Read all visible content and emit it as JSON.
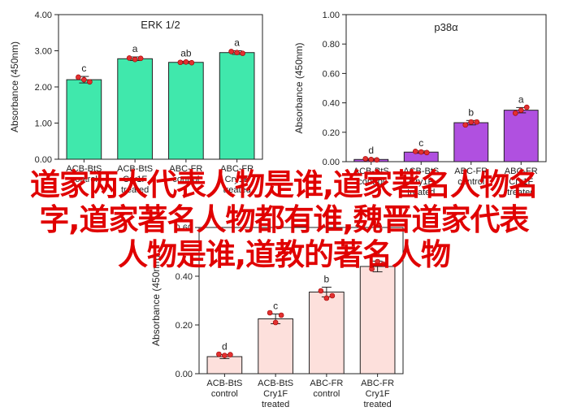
{
  "headline": {
    "line1": "道家两大代表人物是谁,道家著名人物名",
    "line2": "字,道家著名人物都有谁,魏晋道家代表",
    "line3": "人物是谁,道教的著名人物",
    "color": "#e00000"
  },
  "chart_data": [
    {
      "type": "bar",
      "title": "ERK 1/2",
      "ylabel": "Absorbance (450nm)",
      "ylim": [
        0,
        4.0
      ],
      "yticks": [
        "0.00",
        "1.00",
        "2.00",
        "3.00",
        "4.00"
      ],
      "categories": [
        [
          "ACB-BtS",
          "control"
        ],
        [
          "ACB-BtS",
          "Cry1F",
          "treated"
        ],
        [
          "ABC-FR",
          "control"
        ],
        [
          "ABC-FR",
          "Cry1F",
          "treated"
        ]
      ],
      "values": [
        2.2,
        2.78,
        2.68,
        2.95
      ],
      "errors": [
        0.09,
        0.05,
        0.03,
        0.05
      ],
      "letters": [
        "c",
        "a",
        "ab",
        "a"
      ],
      "points": [
        [
          2.27,
          2.2,
          2.14
        ],
        [
          2.8,
          2.76,
          2.79
        ],
        [
          2.68,
          2.69,
          2.67
        ],
        [
          2.98,
          2.95,
          2.93
        ]
      ],
      "bar_color": "#40e8ac"
    },
    {
      "type": "bar",
      "title": "p38α",
      "ylabel": "Absorbance (450nm)",
      "ylim": [
        0,
        1.0
      ],
      "yticks": [
        "0.00",
        "0.20",
        "0.40",
        "0.60",
        "0.80",
        "1.00"
      ],
      "categories": [
        [
          "ACB-BtS",
          "control"
        ],
        [
          "ACB-BtS",
          "Cry1F",
          "treated"
        ],
        [
          "ABC-FR",
          "control"
        ],
        [
          "ABC-FR",
          "Cry1F",
          "treated"
        ]
      ],
      "values": [
        0.015,
        0.065,
        0.265,
        0.35
      ],
      "errors": [
        0.006,
        0.008,
        0.015,
        0.018
      ],
      "letters": [
        "d",
        "c",
        "b",
        "a"
      ],
      "points": [
        [
          0.02,
          0.015,
          0.012
        ],
        [
          0.07,
          0.066,
          0.062
        ],
        [
          0.25,
          0.27,
          0.27
        ],
        [
          0.33,
          0.35,
          0.37
        ]
      ],
      "bar_color": "#b050e0"
    },
    {
      "type": "bar",
      "title": "",
      "ylabel": "Absorbance (450nm)",
      "ylim": [
        0,
        0.6
      ],
      "yticks": [
        "0.00",
        "0.20",
        "0.40",
        "0.60"
      ],
      "categories": [
        [
          "ACB-BtS",
          "control"
        ],
        [
          "ACB-BtS",
          "Cry1F",
          "treated"
        ],
        [
          "ABC-FR",
          "control"
        ],
        [
          "ABC-FR",
          "Cry1F",
          "treated"
        ]
      ],
      "values": [
        0.07,
        0.225,
        0.335,
        0.44
      ],
      "errors": [
        0.008,
        0.02,
        0.02,
        0.022
      ],
      "letters": [
        "d",
        "c",
        "b",
        "a"
      ],
      "points": [
        [
          0.08,
          0.075,
          0.078
        ],
        [
          0.25,
          0.21,
          0.24
        ],
        [
          0.34,
          0.31,
          0.32
        ],
        [
          0.43,
          0.46,
          0.45
        ]
      ],
      "bar_color": "#fde0dc"
    }
  ]
}
